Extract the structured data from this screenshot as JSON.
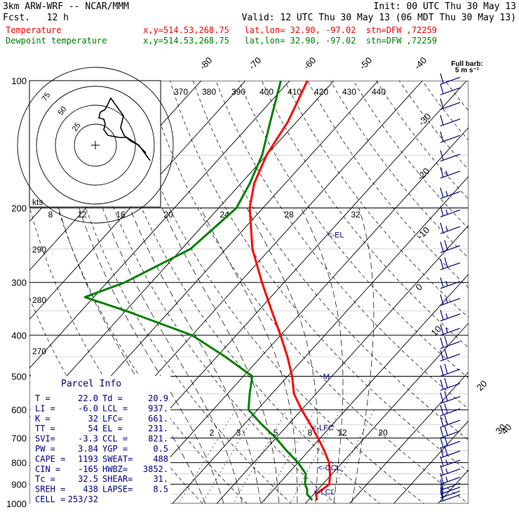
{
  "header": {
    "model": "3km ARW-WRF -- NCAR/MMM",
    "init": "Init: 00 UTC Thu 30 May 13",
    "fcst": "Fcst.   12 h",
    "valid": "Valid: 12 UTC Thu 30 May 13 (06 MDT Thu 30 May 13)",
    "row1_label": "Temperature",
    "row1_loc": "x,y=514.53,268.75   lat,lon= 32.90, -97.02  stn=DFW ,72259",
    "row2_label": "Dewpoint temperature",
    "row2_loc": "x,y=514.53,268.75   lat,lon= 32.90, -97.02  stn=DFW ,72259"
  },
  "colors": {
    "temperature": "#ff0000",
    "dewpoint": "#008000",
    "annotation": "#000080",
    "grid": "#000000"
  },
  "chart_data": {
    "type": "line",
    "title": "",
    "y_scale": "log-pressure",
    "y_unit": "hPa",
    "ylim": [
      1000,
      100
    ],
    "pressure_ticks": [
      100,
      200,
      300,
      400,
      500,
      600,
      700,
      800,
      900,
      1000
    ],
    "isotherm_labels_top": [
      "-80",
      "-70",
      "-60",
      "-50",
      "-40"
    ],
    "isotherm_labels_right": [
      "-30",
      "-20",
      "-10",
      "0",
      "10",
      "20",
      "30",
      "40"
    ],
    "theta_labels_top": [
      "370",
      "380",
      "390",
      "400",
      "410",
      "420",
      "430",
      "440"
    ],
    "theta_labels_left": [
      "290",
      "280",
      "270"
    ],
    "mixing_ratio_labels_200": [
      "8",
      "12",
      "16",
      "20",
      "24",
      "28",
      "32"
    ],
    "mixing_ratio_labels_700": [
      "2",
      "3",
      "5",
      "8",
      "12",
      "20"
    ],
    "series": [
      {
        "name": "Temperature",
        "color": "#ff0000",
        "points": [
          {
            "p": 982,
            "t": 22.0
          },
          {
            "p": 950,
            "t": 20.5
          },
          {
            "p": 925,
            "t": 21.0
          },
          {
            "p": 900,
            "t": 21.5
          },
          {
            "p": 850,
            "t": 19.5
          },
          {
            "p": 800,
            "t": 17.0
          },
          {
            "p": 750,
            "t": 13.5
          },
          {
            "p": 700,
            "t": 9.5
          },
          {
            "p": 650,
            "t": 5.0
          },
          {
            "p": 600,
            "t": 0.0
          },
          {
            "p": 550,
            "t": -5.0
          },
          {
            "p": 500,
            "t": -9.0
          },
          {
            "p": 450,
            "t": -14.0
          },
          {
            "p": 400,
            "t": -20.0
          },
          {
            "p": 350,
            "t": -27.0
          },
          {
            "p": 300,
            "t": -35.0
          },
          {
            "p": 250,
            "t": -44.0
          },
          {
            "p": 200,
            "t": -53.0
          },
          {
            "p": 175,
            "t": -57.0
          },
          {
            "p": 150,
            "t": -60.0
          },
          {
            "p": 125,
            "t": -62.0
          },
          {
            "p": 100,
            "t": -66.0
          }
        ]
      },
      {
        "name": "Dewpoint temperature",
        "color": "#008000",
        "points": [
          {
            "p": 982,
            "t": 20.9
          },
          {
            "p": 950,
            "t": 18.5
          },
          {
            "p": 925,
            "t": 17.5
          },
          {
            "p": 900,
            "t": 16.0
          },
          {
            "p": 850,
            "t": 14.0
          },
          {
            "p": 800,
            "t": 10.0
          },
          {
            "p": 750,
            "t": 5.0
          },
          {
            "p": 700,
            "t": 0.0
          },
          {
            "p": 650,
            "t": -6.0
          },
          {
            "p": 600,
            "t": -12.0
          },
          {
            "p": 550,
            "t": -15.0
          },
          {
            "p": 500,
            "t": -18.0
          },
          {
            "p": 450,
            "t": -28.0
          },
          {
            "p": 400,
            "t": -40.0
          },
          {
            "p": 350,
            "t": -60.0
          },
          {
            "p": 325,
            "t": -72.0
          },
          {
            "p": 300,
            "t": -66.0
          },
          {
            "p": 250,
            "t": -58.0
          },
          {
            "p": 200,
            "t": -56.0
          },
          {
            "p": 175,
            "t": -58.0
          },
          {
            "p": 150,
            "t": -61.0
          },
          {
            "p": 125,
            "t": -66.0
          },
          {
            "p": 100,
            "t": -72.0
          }
        ]
      }
    ],
    "annotations": [
      {
        "text": "<-EL",
        "p": 231,
        "t": -30.0
      },
      {
        "text": "<-LFC",
        "p": 661,
        "t": 6.0
      },
      {
        "text": "<-CCL",
        "p": 821,
        "t": 15.5
      },
      {
        "text": "<-LCL",
        "p": 937,
        "t": 19.5
      },
      {
        "text": "M",
        "p": 500,
        "t": -2.0
      }
    ]
  },
  "hodograph": {
    "axis_label": "kts",
    "ring_labels": [
      "75",
      "50",
      "25"
    ]
  },
  "wind_profile": {
    "title_line1": "Full barb:",
    "title_line2": "5 m s⁻¹",
    "barbs": [
      {
        "p": 990,
        "speed": 10
      },
      {
        "p": 970,
        "speed": 10
      },
      {
        "p": 950,
        "speed": 12
      },
      {
        "p": 930,
        "speed": 12
      },
      {
        "p": 900,
        "speed": 18
      },
      {
        "p": 860,
        "speed": 18
      },
      {
        "p": 820,
        "speed": 18
      },
      {
        "p": 780,
        "speed": 20
      },
      {
        "p": 740,
        "speed": 20
      },
      {
        "p": 700,
        "speed": 20
      },
      {
        "p": 660,
        "speed": 22
      },
      {
        "p": 620,
        "speed": 22
      },
      {
        "p": 580,
        "speed": 22
      },
      {
        "p": 540,
        "speed": 22
      },
      {
        "p": 500,
        "speed": 22
      },
      {
        "p": 460,
        "speed": 20
      },
      {
        "p": 430,
        "speed": 20
      },
      {
        "p": 400,
        "speed": 18
      },
      {
        "p": 370,
        "speed": 18
      },
      {
        "p": 340,
        "speed": 16
      },
      {
        "p": 310,
        "speed": 16
      },
      {
        "p": 280,
        "speed": 20
      },
      {
        "p": 255,
        "speed": 20
      },
      {
        "p": 230,
        "speed": 18
      },
      {
        "p": 210,
        "speed": 18
      },
      {
        "p": 190,
        "speed": 16
      },
      {
        "p": 170,
        "speed": 16
      },
      {
        "p": 155,
        "speed": 14
      },
      {
        "p": 140,
        "speed": 14
      },
      {
        "p": 128,
        "speed": 12
      },
      {
        "p": 117,
        "speed": 12
      },
      {
        "p": 108,
        "speed": 10
      },
      {
        "p": 102,
        "speed": 10
      }
    ]
  },
  "parcel_info": {
    "title": "Parcel Info",
    "rows": [
      [
        "T  =",
        "22.0",
        "Td =",
        "20.9"
      ],
      [
        "LI =",
        "-6.0",
        "LCL =",
        "937."
      ],
      [
        "K  =",
        "32",
        "LFC=",
        "661."
      ],
      [
        "TT =",
        "54",
        "EL =",
        "231."
      ],
      [
        "SVI=",
        "-3.3",
        "CCL =",
        "821."
      ],
      [
        "PW =",
        "3.84",
        "YGP =",
        "0.5"
      ],
      [
        "CAPE =",
        "1193",
        "SWEAT=",
        "488"
      ],
      [
        "CIN =",
        "-165",
        "HWBZ=",
        "3852."
      ],
      [
        "Tc =",
        "32.5",
        "SHEAR=",
        "31."
      ],
      [
        "SREH =",
        "438",
        "LAPSE=",
        "8.5"
      ],
      [
        "CELL =",
        "253/32",
        "",
        ""
      ]
    ]
  }
}
